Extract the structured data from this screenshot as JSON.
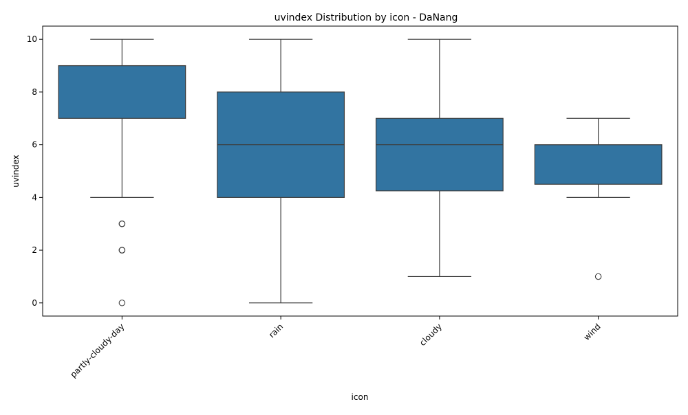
{
  "chart_data": {
    "type": "box",
    "title": "uvindex Distribution by icon - DaNang",
    "xlabel": "icon",
    "ylabel": "uvindex",
    "ylim": [
      -0.5,
      10.5
    ],
    "yticks": [
      0,
      2,
      4,
      6,
      8,
      10
    ],
    "grid": false,
    "categories": [
      "partly-cloudy-day",
      "rain",
      "cloudy",
      "wind"
    ],
    "boxes": [
      {
        "category": "partly-cloudy-day",
        "whisker_low": 4,
        "q1": 7,
        "median": 9,
        "q3": 9,
        "whisker_high": 10,
        "outliers": [
          3,
          3,
          2,
          2,
          0
        ]
      },
      {
        "category": "rain",
        "whisker_low": 0,
        "q1": 4,
        "median": 6,
        "q3": 8,
        "whisker_high": 10,
        "outliers": []
      },
      {
        "category": "cloudy",
        "whisker_low": 1,
        "q1": 4.25,
        "median": 6,
        "q3": 7,
        "whisker_high": 10,
        "outliers": []
      },
      {
        "category": "wind",
        "whisker_low": 4,
        "q1": 4.5,
        "median": 6,
        "q3": 6,
        "whisker_high": 7,
        "outliers": [
          1
        ]
      }
    ],
    "colors": {
      "box_fill": "#3274a1",
      "line": "#3d3d3d",
      "axis": "#000000"
    }
  }
}
